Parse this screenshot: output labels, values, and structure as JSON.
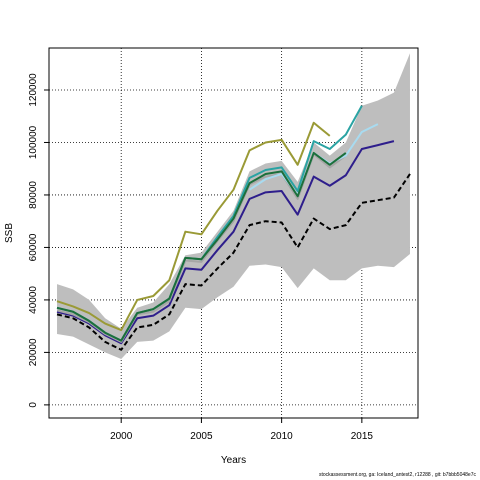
{
  "chart_data": {
    "type": "line",
    "xlabel": "Years",
    "ylabel": "SSB",
    "xlim": [
      1995.5,
      2018.5
    ],
    "ylim": [
      -5000,
      136000
    ],
    "x_ticks": [
      2000,
      2005,
      2010,
      2015
    ],
    "y_ticks": [
      0,
      20000,
      40000,
      60000,
      80000,
      100000,
      120000
    ],
    "grid": true,
    "band": {
      "years": [
        1996,
        1997,
        1998,
        1999,
        2000,
        2001,
        2002,
        2003,
        2004,
        2005,
        2006,
        2007,
        2008,
        2009,
        2010,
        2011,
        2012,
        2013,
        2014,
        2015,
        2016,
        2017,
        2018
      ],
      "upper": [
        46000,
        44000,
        40000,
        33000,
        29000,
        37000,
        39000,
        46000,
        57000,
        58000,
        66000,
        74000,
        89000,
        92000,
        93000,
        85000,
        100000,
        95000,
        100000,
        114000,
        116000,
        119000,
        134000
      ],
      "lower": [
        27000,
        26000,
        23000,
        20000,
        17500,
        24000,
        24500,
        28000,
        37000,
        36500,
        41000,
        45000,
        53000,
        53500,
        52500,
        44500,
        52000,
        47500,
        47500,
        52000,
        53000,
        52500,
        57500
      ]
    },
    "series": [
      {
        "color": "#000000",
        "dashed": true,
        "x": [
          1996,
          1997,
          1998,
          1999,
          2000,
          2001,
          2002,
          2003,
          2004,
          2005,
          2006,
          2007,
          2008,
          2009,
          2010,
          2011,
          2012,
          2013,
          2014,
          2015,
          2016,
          2017,
          2018
        ],
        "y": [
          34500,
          33000,
          29500,
          24000,
          21000,
          29500,
          30500,
          34500,
          46000,
          45500,
          52000,
          58000,
          68500,
          70000,
          69500,
          60000,
          71000,
          67000,
          68500,
          77000,
          78000,
          79000,
          88000
        ]
      },
      {
        "color": "#2e1e8c",
        "dashed": false,
        "x": [
          1996,
          1997,
          1998,
          1999,
          2000,
          2001,
          2002,
          2003,
          2004,
          2005,
          2006,
          2007,
          2008,
          2009,
          2010,
          2011,
          2012,
          2013,
          2014,
          2015,
          2016,
          2017
        ],
        "y": [
          35500,
          34000,
          31000,
          26500,
          23500,
          33000,
          34000,
          38000,
          52000,
          51500,
          59000,
          66000,
          78500,
          81000,
          81500,
          72500,
          87000,
          83500,
          87500,
          97500,
          99000,
          100500
        ]
      },
      {
        "color": "#a6a6a6",
        "dashed": false,
        "x": [
          1996,
          1997,
          1998,
          1999,
          2000,
          2001,
          2002,
          2003,
          2004,
          2005,
          2006,
          2007,
          2008,
          2009,
          2010,
          2011,
          2012,
          2013,
          2014
        ],
        "y": [
          36000,
          34500,
          31500,
          27000,
          24000,
          34500,
          35500,
          39500,
          55000,
          54500,
          62500,
          70000,
          84000,
          87000,
          88000,
          78500,
          95500,
          90500,
          95000
        ]
      },
      {
        "color": "#a8dbf0",
        "dashed": false,
        "x": [
          2008,
          2009,
          2010,
          2011,
          2012,
          2013,
          2014,
          2015,
          2016
        ],
        "y": [
          82000,
          86000,
          88000,
          80000,
          96000,
          92000,
          95000,
          104000,
          107000
        ]
      },
      {
        "color": "#2aa3a3",
        "dashed": false,
        "x": [
          1996,
          1997,
          1998,
          1999,
          2000,
          2001,
          2002,
          2003,
          2004,
          2005,
          2006,
          2007,
          2008,
          2009,
          2010,
          2011,
          2012,
          2013,
          2014,
          2015
        ],
        "y": [
          37000,
          35500,
          32000,
          27500,
          24500,
          35000,
          36500,
          40500,
          56000,
          55500,
          64000,
          72000,
          86500,
          89500,
          90500,
          81500,
          100500,
          97500,
          103000,
          114000
        ]
      },
      {
        "color": "#1c6f3b",
        "dashed": false,
        "x": [
          1996,
          1997,
          1998,
          1999,
          2000,
          2001,
          2002,
          2003,
          2004,
          2005,
          2006,
          2007,
          2008,
          2009,
          2010,
          2011,
          2012,
          2013,
          2014
        ],
        "y": [
          37000,
          35500,
          32000,
          27500,
          24500,
          35000,
          36500,
          40500,
          56000,
          55500,
          63000,
          71000,
          84500,
          88000,
          89000,
          79500,
          96000,
          91500,
          96000
        ]
      },
      {
        "color": "#9a9a36",
        "dashed": false,
        "x": [
          1996,
          1997,
          1998,
          1999,
          2000,
          2001,
          2002,
          2003,
          2004,
          2005,
          2006,
          2007,
          2008,
          2009,
          2010,
          2011,
          2012,
          2013
        ],
        "y": [
          39500,
          37500,
          35000,
          31000,
          28500,
          40000,
          41500,
          47500,
          66000,
          65000,
          74000,
          82000,
          97000,
          100000,
          101000,
          91500,
          107500,
          102500
        ]
      }
    ]
  },
  "footer_text": "stockassessment.org, ga:  Iceland_antest2, r12288 , git: b7bbb5048e7c"
}
